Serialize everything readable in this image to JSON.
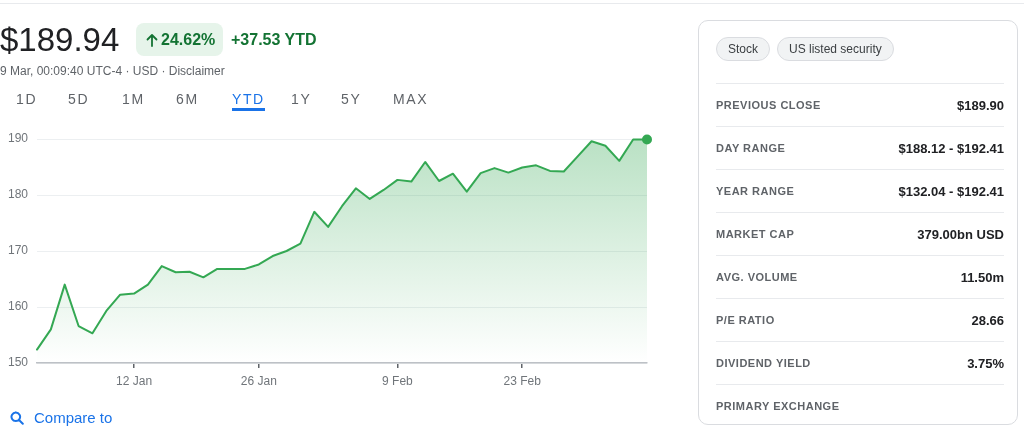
{
  "chart_data": [
    {
      "type": "area",
      "title": "$189.94",
      "subtitle": "9 Mar, 00:09:40 UTC-4 · USD · Disclaimer",
      "annotations": [
        "24.62%",
        "+37.53 YTD",
        "1D",
        "5D",
        "1M",
        "6M",
        "YTD",
        "1Y",
        "5Y",
        "MAX",
        "Compare to"
      ],
      "categories": [
        null,
        null,
        null,
        null,
        null,
        null,
        null,
        "12 Jan",
        null,
        null,
        null,
        null,
        null,
        null,
        null,
        null,
        "26 Jan",
        null,
        null,
        null,
        null,
        null,
        null,
        null,
        null,
        null,
        "9 Feb",
        null,
        null,
        null,
        null,
        null,
        null,
        null,
        null,
        "23 Feb",
        null,
        null,
        null,
        null,
        null,
        null,
        null,
        null,
        null
      ],
      "series": [
        {
          "type": "area",
          "color": "#34a853",
          "values": [
            152.4,
            156.0,
            164.0,
            156.6,
            155.3,
            159.3,
            162.2,
            162.4,
            164.0,
            167.3,
            166.2,
            166.3,
            165.3,
            166.8,
            166.8,
            166.8,
            167.6,
            169.1,
            170.0,
            171.3,
            177.0,
            174.3,
            178.0,
            181.2,
            179.3,
            180.9,
            182.7,
            182.4,
            185.9,
            182.5,
            183.8,
            180.6,
            183.9,
            184.8,
            184.0,
            184.9,
            185.3,
            184.3,
            184.2,
            186.9,
            189.6,
            188.8,
            186.1,
            189.9,
            189.9
          ]
        },
        {
          "type": "scatter",
          "color": "#34a853",
          "marker": "circle",
          "values": [
            null,
            null,
            null,
            null,
            null,
            null,
            null,
            null,
            null,
            null,
            null,
            null,
            null,
            null,
            null,
            null,
            null,
            null,
            null,
            null,
            null,
            null,
            null,
            null,
            null,
            null,
            null,
            null,
            null,
            null,
            null,
            null,
            null,
            null,
            null,
            null,
            null,
            null,
            null,
            null,
            null,
            null,
            null,
            null,
            189.9
          ]
        }
      ],
      "ylim": [
        150,
        190
      ],
      "yticks": [
        150,
        160,
        170,
        180,
        190
      ],
      "grid": "y"
    },
    {
      "type": "other",
      "annotations": [
        "Stock",
        "US listed security",
        "PREVIOUS CLOSE",
        "$189.90",
        "DAY RANGE",
        "$188.12 - $192.41",
        "YEAR RANGE",
        "$132.04 - $192.41",
        "MARKET CAP",
        "379.00bn USD",
        "AVG. VOLUME",
        "11.50m",
        "P/E RATIO",
        "28.66",
        "DIVIDEND YIELD",
        "3.75%",
        "PRIMARY EXCHANGE"
      ]
    }
  ]
}
